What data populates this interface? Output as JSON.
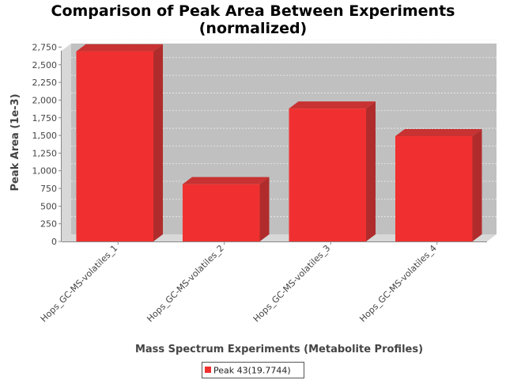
{
  "chart_data": {
    "type": "bar",
    "title": [
      "Comparison of Peak Area Between Experiments",
      "(normalized)"
    ],
    "xlabel": "Mass Spectrum Experiments (Metabolite Profiles)",
    "ylabel": "Peak Area (1e-3)",
    "categories": [
      "Hops_GC-MS-volatiles_1",
      "Hops_GC-MS-volatiles_2",
      "Hops_GC-MS-volatiles_3",
      "Hops_GC-MS-volatiles_4"
    ],
    "series": [
      {
        "name": "Peak 43(19.7744)",
        "values": [
          2690,
          810,
          1880,
          1490
        ]
      }
    ],
    "ylim": [
      0,
      2800
    ],
    "yticks": [
      "0",
      "250",
      "500",
      "750",
      "1,000",
      "1,250",
      "1,500",
      "1,750",
      "2,000",
      "2,250",
      "2,500",
      "2,750"
    ],
    "grid": true,
    "legend_position": "bottom-center",
    "colors": {
      "bar": "#f03030",
      "bar_side": "#b02c2c",
      "bar_top": "#c83232",
      "plot_bg": "#c0c0c0",
      "wall": "#d8d8d8"
    }
  }
}
